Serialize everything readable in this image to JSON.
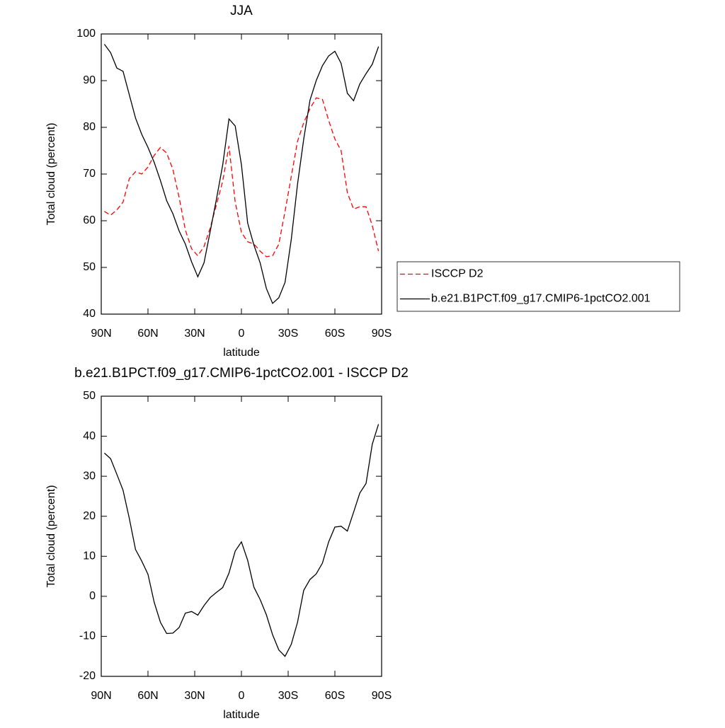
{
  "chart_data": [
    {
      "type": "line",
      "title": "JJA",
      "xlabel": "latitude",
      "ylabel": "Total cloud (percent)",
      "x": [
        88,
        84,
        80,
        76,
        72,
        68,
        64,
        60,
        56,
        52,
        48,
        44,
        40,
        36,
        32,
        28,
        24,
        20,
        16,
        12,
        8,
        4,
        0,
        -4,
        -8,
        -12,
        -16,
        -20,
        -24,
        -28,
        -32,
        -36,
        -40,
        -44,
        -48,
        -52,
        -56,
        -60,
        -64,
        -68,
        -72,
        -76,
        -80,
        -84,
        -88
      ],
      "xlim": [
        90,
        -90
      ],
      "xticks": [
        {
          "value": 90,
          "label": "90N"
        },
        {
          "value": 60,
          "label": "60N"
        },
        {
          "value": 30,
          "label": "30N"
        },
        0,
        {
          "value": -30,
          "label": "30S"
        },
        {
          "value": -60,
          "label": "60S"
        },
        {
          "value": -90,
          "label": "90S"
        }
      ],
      "ylim": [
        40,
        100
      ],
      "yticks": [
        40,
        50,
        60,
        70,
        80,
        90,
        100
      ],
      "legend": "right",
      "series": [
        {
          "name": "ISCCP D2",
          "color": "#ff0000",
          "line_style": "dashed",
          "values": [
            62,
            61.2,
            62.3,
            64,
            69,
            70.5,
            70,
            71.5,
            74,
            75.7,
            74.5,
            71,
            65,
            58,
            54,
            52.5,
            54.5,
            58.5,
            63.5,
            68.5,
            76,
            64,
            57.5,
            55.5,
            55,
            53.5,
            52.3,
            52.5,
            55,
            62,
            69.5,
            77,
            81,
            84,
            86.3,
            86,
            81.5,
            77.5,
            75,
            66,
            62.5,
            63,
            63,
            59,
            53.5
          ]
        },
        {
          "name": "b.e21.B1PCT.f09_g17.CMIP6-1pctCO2.001",
          "color": "#000000",
          "line_style": "solid",
          "values": [
            97.8,
            96,
            92.7,
            92,
            87,
            82,
            78.5,
            75.7,
            72.5,
            68.6,
            64.3,
            61.5,
            57.8,
            55,
            51.2,
            48,
            51,
            57.8,
            64.7,
            72,
            81.8,
            80.3,
            72,
            59.5,
            54.8,
            51,
            45.5,
            42.3,
            43.5,
            46.8,
            56,
            67.8,
            77.5,
            85.8,
            90,
            93.2,
            95.3,
            96.3,
            93.7,
            87.3,
            85.7,
            89.3,
            91.5,
            93.5,
            97.3
          ]
        }
      ]
    },
    {
      "type": "line",
      "title": "b.e21.B1PCT.f09_g17.CMIP6-1pctCO2.001 - ISCCP D2",
      "xlabel": "latitude",
      "ylabel": "Total cloud (percent)",
      "x": [
        88,
        84,
        80,
        76,
        72,
        68,
        64,
        60,
        56,
        52,
        48,
        44,
        40,
        36,
        32,
        28,
        24,
        20,
        16,
        12,
        8,
        4,
        0,
        -4,
        -8,
        -12,
        -16,
        -20,
        -24,
        -28,
        -32,
        -36,
        -40,
        -44,
        -48,
        -52,
        -56,
        -60,
        -64,
        -68,
        -72,
        -76,
        -80,
        -84,
        -88
      ],
      "xlim": [
        90,
        -90
      ],
      "xticks": [
        {
          "value": 90,
          "label": "90N"
        },
        {
          "value": 60,
          "label": "60N"
        },
        {
          "value": 30,
          "label": "30N"
        },
        0,
        {
          "value": -30,
          "label": "30S"
        },
        {
          "value": -60,
          "label": "60S"
        },
        {
          "value": -90,
          "label": "90S"
        }
      ],
      "ylim": [
        -20,
        50
      ],
      "yticks": [
        -20,
        -10,
        0,
        10,
        20,
        30,
        40,
        50
      ],
      "series": [
        {
          "color": "#000000",
          "line_style": "solid",
          "values": [
            35.8,
            34.4,
            30.5,
            26.5,
            19.5,
            11.7,
            8.8,
            5.5,
            -1.5,
            -6.5,
            -9.3,
            -9.2,
            -7.8,
            -4.2,
            -3.8,
            -4.7,
            -2.3,
            -0.3,
            1,
            2.2,
            5.8,
            11.3,
            13.6,
            9,
            2.3,
            -0.8,
            -4.6,
            -9.6,
            -13.4,
            -15,
            -12,
            -6.5,
            1.5,
            4.2,
            5.6,
            8.3,
            13.6,
            17.3,
            17.5,
            16.3,
            21,
            25.8,
            28.2,
            38,
            43
          ]
        }
      ]
    }
  ]
}
